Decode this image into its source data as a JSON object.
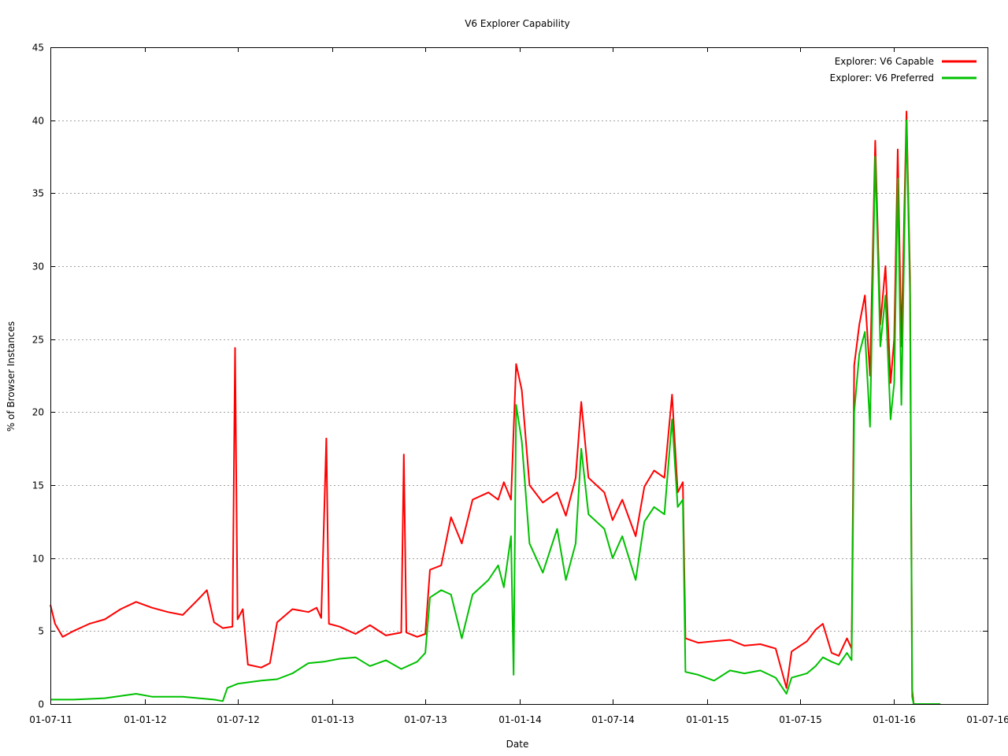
{
  "chart_data": {
    "type": "line",
    "title": "V6 Explorer Capability",
    "xlabel": "Date",
    "ylabel": "% of Browser Instances",
    "x_format": "DD-MM-YY",
    "xlim": [
      "2011-07-01",
      "2016-07-01"
    ],
    "x_ticks": [
      "01-07-11",
      "01-01-12",
      "01-07-12",
      "01-01-13",
      "01-07-13",
      "01-01-14",
      "01-07-14",
      "01-01-15",
      "01-07-15",
      "01-01-16",
      "01-07-16"
    ],
    "ylim": [
      0,
      45
    ],
    "y_ticks": [
      0,
      5,
      10,
      15,
      20,
      25,
      30,
      35,
      40,
      45
    ],
    "grid": true,
    "legend_position": "top-right",
    "series": [
      {
        "name": "Explorer: V6 Capable",
        "color": "#ff0000",
        "points": [
          [
            "2011-07-01",
            6.8
          ],
          [
            "2011-07-10",
            5.5
          ],
          [
            "2011-07-25",
            4.6
          ],
          [
            "2011-08-15",
            5.0
          ],
          [
            "2011-09-15",
            5.5
          ],
          [
            "2011-10-15",
            5.8
          ],
          [
            "2011-11-15",
            6.5
          ],
          [
            "2011-12-15",
            7.0
          ],
          [
            "2012-01-15",
            6.6
          ],
          [
            "2012-02-15",
            6.3
          ],
          [
            "2012-03-15",
            6.1
          ],
          [
            "2012-04-15",
            7.2
          ],
          [
            "2012-05-01",
            7.8
          ],
          [
            "2012-05-15",
            5.6
          ],
          [
            "2012-06-01",
            5.2
          ],
          [
            "2012-06-20",
            5.3
          ],
          [
            "2012-06-25",
            24.4
          ],
          [
            "2012-06-30",
            5.8
          ],
          [
            "2012-07-10",
            6.5
          ],
          [
            "2012-07-20",
            2.7
          ],
          [
            "2012-08-15",
            2.5
          ],
          [
            "2012-09-01",
            2.8
          ],
          [
            "2012-09-15",
            5.6
          ],
          [
            "2012-10-15",
            6.5
          ],
          [
            "2012-11-15",
            6.3
          ],
          [
            "2012-12-01",
            6.6
          ],
          [
            "2012-12-10",
            5.9
          ],
          [
            "2012-12-20",
            18.2
          ],
          [
            "2012-12-25",
            5.5
          ],
          [
            "2013-01-15",
            5.3
          ],
          [
            "2013-02-15",
            4.8
          ],
          [
            "2013-03-15",
            5.4
          ],
          [
            "2013-04-15",
            4.7
          ],
          [
            "2013-05-15",
            4.9
          ],
          [
            "2013-05-20",
            17.1
          ],
          [
            "2013-05-25",
            4.9
          ],
          [
            "2013-06-15",
            4.6
          ],
          [
            "2013-07-01",
            4.8
          ],
          [
            "2013-07-10",
            9.2
          ],
          [
            "2013-08-01",
            9.5
          ],
          [
            "2013-08-20",
            12.8
          ],
          [
            "2013-09-10",
            11.0
          ],
          [
            "2013-10-01",
            14.0
          ],
          [
            "2013-11-01",
            14.5
          ],
          [
            "2013-11-20",
            14.0
          ],
          [
            "2013-12-01",
            15.2
          ],
          [
            "2013-12-15",
            14.0
          ],
          [
            "2013-12-25",
            23.3
          ],
          [
            "2014-01-05",
            21.5
          ],
          [
            "2014-01-20",
            15.0
          ],
          [
            "2014-02-15",
            13.8
          ],
          [
            "2014-03-15",
            14.5
          ],
          [
            "2014-04-01",
            12.9
          ],
          [
            "2014-04-20",
            15.5
          ],
          [
            "2014-05-01",
            20.7
          ],
          [
            "2014-05-15",
            15.5
          ],
          [
            "2014-06-15",
            14.5
          ],
          [
            "2014-07-01",
            12.6
          ],
          [
            "2014-07-20",
            14.0
          ],
          [
            "2014-08-15",
            11.5
          ],
          [
            "2014-09-01",
            14.9
          ],
          [
            "2014-09-20",
            16.0
          ],
          [
            "2014-10-10",
            15.5
          ],
          [
            "2014-10-25",
            21.2
          ],
          [
            "2014-11-05",
            14.5
          ],
          [
            "2014-11-15",
            15.2
          ],
          [
            "2014-11-20",
            4.5
          ],
          [
            "2014-12-15",
            4.2
          ],
          [
            "2015-01-15",
            4.3
          ],
          [
            "2015-02-15",
            4.4
          ],
          [
            "2015-03-15",
            4.0
          ],
          [
            "2015-04-15",
            4.1
          ],
          [
            "2015-05-15",
            3.8
          ],
          [
            "2015-06-05",
            1.1
          ],
          [
            "2015-06-15",
            3.6
          ],
          [
            "2015-07-15",
            4.3
          ],
          [
            "2015-08-01",
            5.1
          ],
          [
            "2015-08-15",
            5.5
          ],
          [
            "2015-09-01",
            3.5
          ],
          [
            "2015-09-15",
            3.3
          ],
          [
            "2015-10-01",
            4.5
          ],
          [
            "2015-10-10",
            3.8
          ],
          [
            "2015-10-15",
            23.2
          ],
          [
            "2015-10-25",
            26.0
          ],
          [
            "2015-11-05",
            28.0
          ],
          [
            "2015-11-15",
            22.5
          ],
          [
            "2015-11-25",
            38.6
          ],
          [
            "2015-12-05",
            26.0
          ],
          [
            "2015-12-15",
            30.0
          ],
          [
            "2015-12-25",
            22.0
          ],
          [
            "2016-01-01",
            25.0
          ],
          [
            "2016-01-08",
            38.0
          ],
          [
            "2016-01-15",
            24.5
          ],
          [
            "2016-01-25",
            40.6
          ],
          [
            "2016-02-01",
            29.2
          ],
          [
            "2016-02-05",
            1.0
          ],
          [
            "2016-02-08",
            0.0
          ],
          [
            "2016-03-31",
            0.0
          ]
        ]
      },
      {
        "name": "Explorer: V6 Preferred",
        "color": "#00c000",
        "points": [
          [
            "2011-07-01",
            0.3
          ],
          [
            "2011-08-15",
            0.3
          ],
          [
            "2011-10-15",
            0.4
          ],
          [
            "2011-12-15",
            0.7
          ],
          [
            "2012-01-15",
            0.5
          ],
          [
            "2012-03-15",
            0.5
          ],
          [
            "2012-05-15",
            0.3
          ],
          [
            "2012-06-01",
            0.2
          ],
          [
            "2012-06-10",
            1.1
          ],
          [
            "2012-07-01",
            1.4
          ],
          [
            "2012-08-15",
            1.6
          ],
          [
            "2012-09-15",
            1.7
          ],
          [
            "2012-10-15",
            2.1
          ],
          [
            "2012-11-15",
            2.8
          ],
          [
            "2012-12-15",
            2.9
          ],
          [
            "2013-01-15",
            3.1
          ],
          [
            "2013-02-15",
            3.2
          ],
          [
            "2013-03-15",
            2.6
          ],
          [
            "2013-04-15",
            3.0
          ],
          [
            "2013-05-15",
            2.4
          ],
          [
            "2013-06-15",
            2.9
          ],
          [
            "2013-07-01",
            3.5
          ],
          [
            "2013-07-10",
            7.3
          ],
          [
            "2013-08-01",
            7.8
          ],
          [
            "2013-08-20",
            7.5
          ],
          [
            "2013-09-10",
            4.5
          ],
          [
            "2013-10-01",
            7.5
          ],
          [
            "2013-11-01",
            8.5
          ],
          [
            "2013-11-20",
            9.5
          ],
          [
            "2013-12-01",
            8.0
          ],
          [
            "2013-12-15",
            11.5
          ],
          [
            "2013-12-20",
            2.0
          ],
          [
            "2013-12-25",
            20.5
          ],
          [
            "2014-01-05",
            18.0
          ],
          [
            "2014-01-20",
            11.0
          ],
          [
            "2014-02-15",
            9.0
          ],
          [
            "2014-03-15",
            12.0
          ],
          [
            "2014-04-01",
            8.5
          ],
          [
            "2014-04-20",
            11.0
          ],
          [
            "2014-05-01",
            17.5
          ],
          [
            "2014-05-15",
            13.0
          ],
          [
            "2014-06-15",
            12.0
          ],
          [
            "2014-07-01",
            10.0
          ],
          [
            "2014-07-20",
            11.5
          ],
          [
            "2014-08-15",
            8.5
          ],
          [
            "2014-09-01",
            12.5
          ],
          [
            "2014-09-20",
            13.5
          ],
          [
            "2014-10-10",
            13.0
          ],
          [
            "2014-10-25",
            19.5
          ],
          [
            "2014-11-05",
            13.5
          ],
          [
            "2014-11-15",
            14.0
          ],
          [
            "2014-11-20",
            2.2
          ],
          [
            "2014-12-15",
            2.0
          ],
          [
            "2015-01-15",
            1.6
          ],
          [
            "2015-02-15",
            2.3
          ],
          [
            "2015-03-15",
            2.1
          ],
          [
            "2015-04-15",
            2.3
          ],
          [
            "2015-05-15",
            1.8
          ],
          [
            "2015-06-05",
            0.7
          ],
          [
            "2015-06-15",
            1.8
          ],
          [
            "2015-07-15",
            2.1
          ],
          [
            "2015-08-01",
            2.6
          ],
          [
            "2015-08-15",
            3.2
          ],
          [
            "2015-09-01",
            2.9
          ],
          [
            "2015-09-15",
            2.7
          ],
          [
            "2015-10-01",
            3.5
          ],
          [
            "2015-10-10",
            3.0
          ],
          [
            "2015-10-15",
            20.0
          ],
          [
            "2015-10-25",
            24.0
          ],
          [
            "2015-11-05",
            25.5
          ],
          [
            "2015-11-15",
            19.0
          ],
          [
            "2015-11-25",
            37.5
          ],
          [
            "2015-12-05",
            24.5
          ],
          [
            "2015-12-15",
            28.0
          ],
          [
            "2015-12-25",
            19.5
          ],
          [
            "2016-01-01",
            22.0
          ],
          [
            "2016-01-08",
            36.0
          ],
          [
            "2016-01-15",
            20.5
          ],
          [
            "2016-01-25",
            40.0
          ],
          [
            "2016-02-01",
            28.0
          ],
          [
            "2016-02-05",
            0.5
          ],
          [
            "2016-02-08",
            0.0
          ],
          [
            "2016-03-31",
            0.0
          ]
        ]
      }
    ]
  }
}
